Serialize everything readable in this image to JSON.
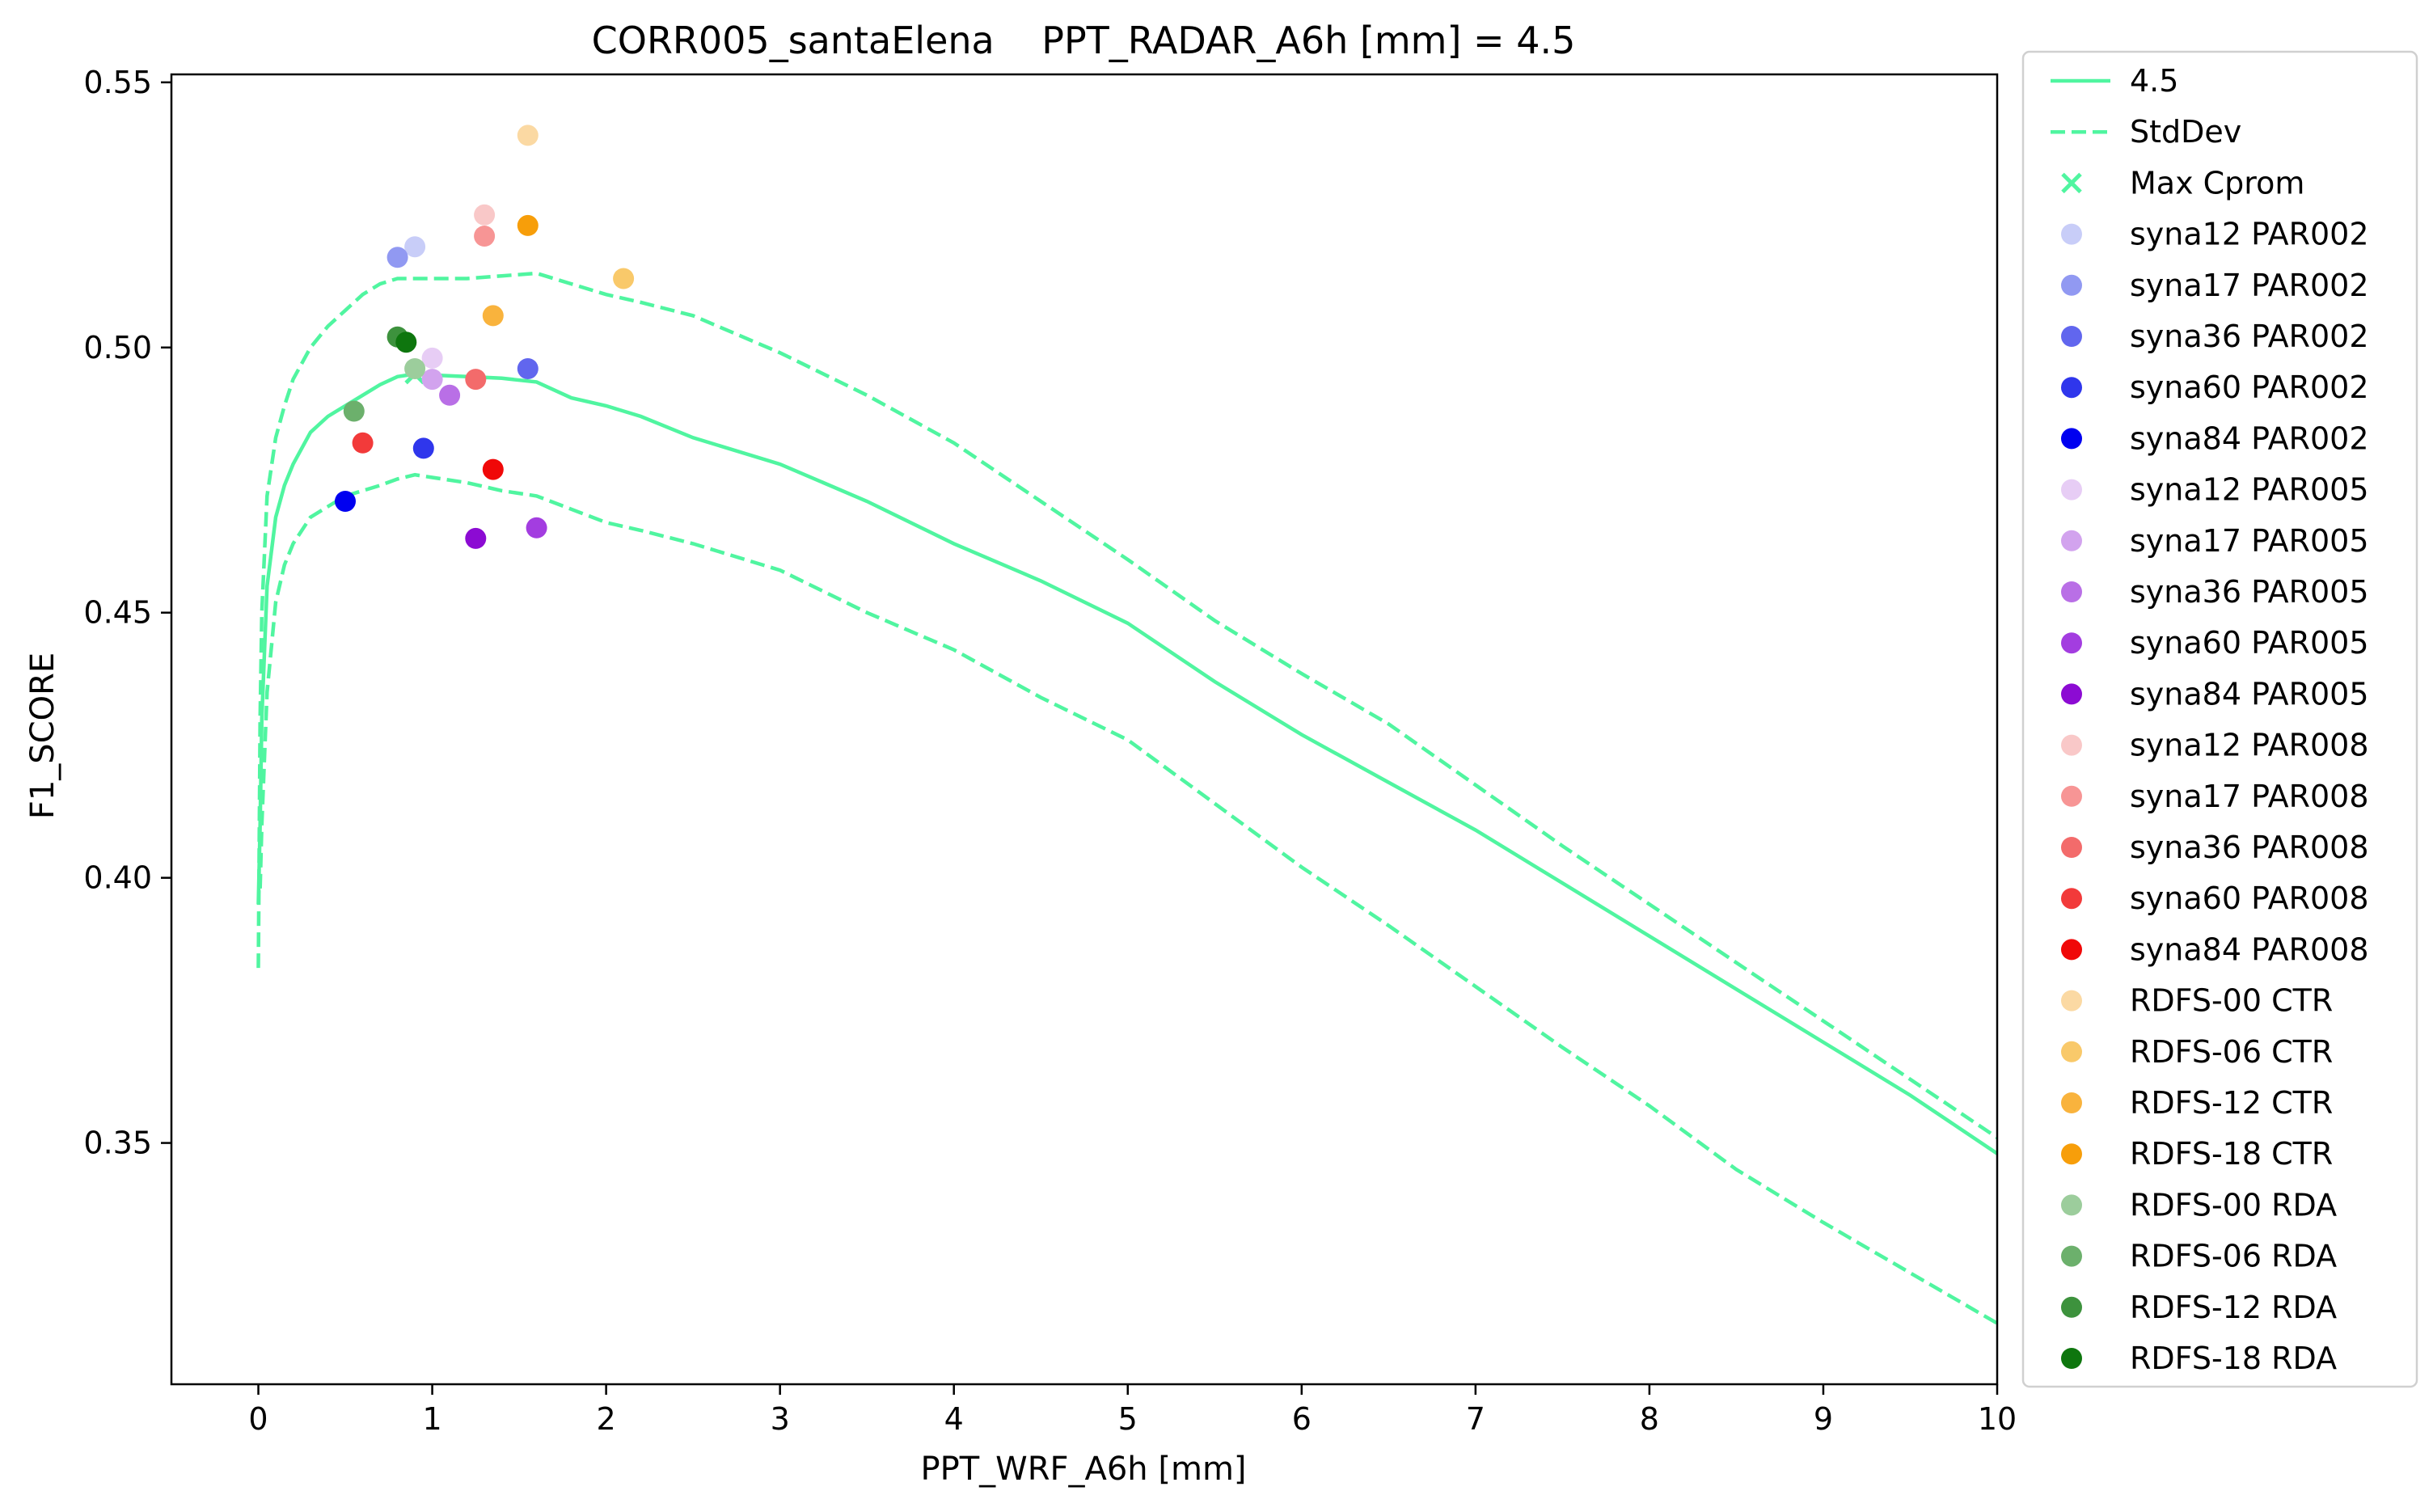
{
  "chart_data": {
    "type": "line+scatter",
    "title": "CORR005_santaElena    PPT_RADAR_A6h [mm] = 4.5",
    "xlabel": "PPT_WRF_A6h [mm]",
    "ylabel": "F1_SCORE",
    "xlim": [
      -0.5,
      10
    ],
    "ylim": [
      0.3045,
      0.5515
    ],
    "xticks": [
      0,
      1,
      2,
      3,
      4,
      5,
      6,
      7,
      8,
      9,
      10
    ],
    "yticks": [
      0.35,
      0.4,
      0.45,
      0.5,
      0.55
    ],
    "xtick_labels": [
      "0",
      "1",
      "2",
      "3",
      "4",
      "5",
      "6",
      "7",
      "8",
      "9",
      "10"
    ],
    "ytick_labels": [
      "0.35",
      "0.40",
      "0.45",
      "0.50",
      "0.55"
    ],
    "grid": false,
    "legend_position": "outside-right",
    "line_color": "#50f5a0",
    "lines": [
      {
        "name": "4.5",
        "style": "solid",
        "x": [
          0,
          0.01,
          0.02,
          0.05,
          0.1,
          0.15,
          0.2,
          0.3,
          0.4,
          0.5,
          0.6,
          0.7,
          0.8,
          0.9,
          1.0,
          1.2,
          1.4,
          1.6,
          1.8,
          2.0,
          2.2,
          2.5,
          3.0,
          3.5,
          4.0,
          4.5,
          5.0,
          5.5,
          6.0,
          6.5,
          7.0,
          7.5,
          8.0,
          8.5,
          9.0,
          9.5,
          10.0
        ],
        "y": [
          0.395,
          0.41,
          0.43,
          0.455,
          0.468,
          0.474,
          0.478,
          0.484,
          0.487,
          0.489,
          0.491,
          0.493,
          0.4945,
          0.495,
          0.4948,
          0.4945,
          0.4942,
          0.4935,
          0.4905,
          0.489,
          0.487,
          0.483,
          0.478,
          0.471,
          0.463,
          0.456,
          0.448,
          0.437,
          0.427,
          0.418,
          0.409,
          0.399,
          0.389,
          0.379,
          0.369,
          0.359,
          0.348
        ]
      },
      {
        "name": "StdDev",
        "style": "dashed",
        "x": [
          0,
          0.01,
          0.02,
          0.05,
          0.1,
          0.15,
          0.2,
          0.3,
          0.4,
          0.5,
          0.6,
          0.7,
          0.8,
          1.0,
          1.2,
          1.4,
          1.6,
          1.8,
          2.0,
          2.2,
          2.5,
          3.0,
          3.5,
          4.0,
          4.5,
          5.0,
          5.5,
          6.0,
          6.5,
          7.0,
          7.5,
          8.0,
          8.5,
          9.0,
          9.5,
          10.0
        ],
        "y": [
          0.383,
          0.43,
          0.45,
          0.472,
          0.483,
          0.489,
          0.494,
          0.5,
          0.504,
          0.507,
          0.51,
          0.512,
          0.513,
          0.513,
          0.513,
          0.5135,
          0.514,
          0.512,
          0.51,
          0.5085,
          0.506,
          0.499,
          0.491,
          0.482,
          0.471,
          0.46,
          0.4485,
          0.4385,
          0.429,
          0.4175,
          0.406,
          0.395,
          0.384,
          0.373,
          0.362,
          0.351
        ]
      },
      {
        "name": "",
        "style": "dashed",
        "x": [
          0.01,
          0.02,
          0.05,
          0.1,
          0.15,
          0.2,
          0.3,
          0.4,
          0.5,
          0.6,
          0.7,
          0.8,
          0.9,
          1.0,
          1.2,
          1.4,
          1.6,
          1.8,
          2.0,
          2.2,
          2.5,
          3.0,
          3.5,
          4.0,
          4.5,
          5.0,
          5.5,
          6.0,
          6.5,
          7.0,
          7.5,
          8.0,
          8.5,
          9.0,
          9.5,
          10.0
        ],
        "y": [
          0.398,
          0.41,
          0.435,
          0.452,
          0.459,
          0.463,
          0.468,
          0.47,
          0.472,
          0.473,
          0.474,
          0.4752,
          0.476,
          0.4755,
          0.4745,
          0.473,
          0.472,
          0.4695,
          0.467,
          0.4655,
          0.463,
          0.458,
          0.45,
          0.443,
          0.434,
          0.426,
          0.414,
          0.402,
          0.391,
          0.3795,
          0.368,
          0.357,
          0.345,
          0.335,
          0.3255,
          0.316
        ]
      }
    ],
    "max_cprom": {
      "name": "Max Cprom",
      "x": 0.9,
      "y": 0.495,
      "color": "#50f5a0"
    },
    "series": [
      {
        "name": "syna12 PAR002",
        "x": 0.9,
        "y": 0.519,
        "color": "#c8cdf8"
      },
      {
        "name": "syna17 PAR002",
        "x": 0.8,
        "y": 0.517,
        "color": "#9199f2"
      },
      {
        "name": "syna36 PAR002",
        "x": 1.55,
        "y": 0.496,
        "color": "#6166ee"
      },
      {
        "name": "syna60 PAR002",
        "x": 0.95,
        "y": 0.481,
        "color": "#2f36ec"
      },
      {
        "name": "syna84 PAR002",
        "x": 0.5,
        "y": 0.471,
        "color": "#0000f0"
      },
      {
        "name": "syna12 PAR005",
        "x": 1.0,
        "y": 0.498,
        "color": "#e7cdf5"
      },
      {
        "name": "syna17 PAR005",
        "x": 1.0,
        "y": 0.494,
        "color": "#d2a3ee"
      },
      {
        "name": "syna36 PAR005",
        "x": 1.1,
        "y": 0.491,
        "color": "#b96fe6"
      },
      {
        "name": "syna60 PAR005",
        "x": 1.6,
        "y": 0.466,
        "color": "#a33de0"
      },
      {
        "name": "syna84 PAR005",
        "x": 1.25,
        "y": 0.464,
        "color": "#8c0bd3"
      },
      {
        "name": "syna12 PAR008",
        "x": 1.3,
        "y": 0.525,
        "color": "#f9c8c8"
      },
      {
        "name": "syna17 PAR008",
        "x": 1.3,
        "y": 0.521,
        "color": "#f79595"
      },
      {
        "name": "syna36 PAR008",
        "x": 1.25,
        "y": 0.494,
        "color": "#f36b6b"
      },
      {
        "name": "syna60 PAR008",
        "x": 0.6,
        "y": 0.482,
        "color": "#f23a3a"
      },
      {
        "name": "syna84 PAR008",
        "x": 1.35,
        "y": 0.477,
        "color": "#f00808"
      },
      {
        "name": "RDFS-00 CTR",
        "x": 1.55,
        "y": 0.54,
        "color": "#fbd9a3"
      },
      {
        "name": "RDFS-06 CTR",
        "x": 2.1,
        "y": 0.513,
        "color": "#f9c96a"
      },
      {
        "name": "RDFS-12 CTR",
        "x": 1.35,
        "y": 0.506,
        "color": "#f9b33d"
      },
      {
        "name": "RDFS-18 CTR",
        "x": 1.55,
        "y": 0.523,
        "color": "#f79e0a"
      },
      {
        "name": "RDFS-00 RDA",
        "x": 0.9,
        "y": 0.496,
        "color": "#9ccd9c"
      },
      {
        "name": "RDFS-06 RDA",
        "x": 0.55,
        "y": 0.488,
        "color": "#6cb06c"
      },
      {
        "name": "RDFS-12 RDA",
        "x": 0.8,
        "y": 0.502,
        "color": "#3d923d"
      },
      {
        "name": "RDFS-18 RDA",
        "x": 0.85,
        "y": 0.501,
        "color": "#0e760e"
      }
    ]
  }
}
